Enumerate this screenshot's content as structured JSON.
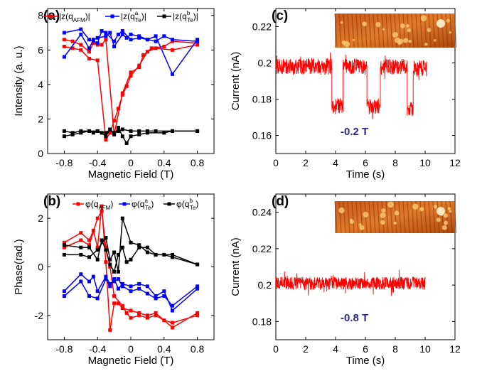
{
  "chart_data": [
    {
      "id": "a",
      "panel_label": "(a)",
      "type": "line",
      "xlabel": "Magnetic Field (T)",
      "ylabel": "Intensity (a. u.)",
      "xlim": [
        -1.0,
        1.0
      ],
      "ylim": [
        0,
        8.4
      ],
      "xticks": [
        -0.8,
        -0.4,
        0,
        0.4,
        0.8
      ],
      "xtick_labels": [
        "-0.8",
        "-0.4",
        "0",
        "0.4",
        "0.8"
      ],
      "yticks": [
        0,
        2,
        4,
        6,
        8
      ],
      "ytick_labels": [
        "0",
        "2",
        "4",
        "6",
        "8"
      ],
      "legend": {
        "placement": "top",
        "entries": [
          {
            "prefix": "|z(q",
            "sub": "AFM",
            "sup": "",
            "suffix": ")|",
            "color": "#ff0000"
          },
          {
            "prefix": "|z(q",
            "sub": "Te",
            "sup": "a",
            "suffix": ")|",
            "color": "#0000ff"
          },
          {
            "prefix": "|z(q",
            "sub": "Te",
            "sup": "b",
            "suffix": ")|",
            "color": "#000000"
          }
        ]
      },
      "series": [
        {
          "color": "#ff0000",
          "x": [
            -0.8,
            -0.7,
            -0.6,
            -0.5,
            -0.4,
            -0.3,
            -0.25,
            -0.2,
            -0.15,
            -0.1,
            -0.05,
            0,
            0.1,
            0.2,
            0.3,
            0.5,
            0.8
          ],
          "y": [
            6.2,
            6.1,
            6.0,
            5.5,
            5.4,
            0.8,
            1.2,
            1.9,
            2.6,
            3.4,
            3.9,
            4.5,
            5.1,
            5.9,
            6.1,
            6.0,
            6.3
          ]
        },
        {
          "color": "#ff0000",
          "x": [
            -0.8,
            -0.7,
            -0.6,
            -0.5,
            -0.45,
            -0.4,
            -0.35,
            -0.3,
            -0.2,
            -0.1,
            0,
            0.1,
            0.15,
            0.25,
            0.4,
            0.5,
            0.8
          ],
          "y": [
            6.6,
            6.5,
            6.3,
            5.9,
            6.4,
            6.3,
            6.3,
            6.6,
            1.1,
            3.5,
            4.7,
            5.0,
            5.7,
            6.1,
            6.2,
            6.5,
            6.4
          ]
        },
        {
          "color": "#0000ff",
          "x": [
            -0.8,
            -0.6,
            -0.5,
            -0.45,
            -0.4,
            -0.3,
            -0.25,
            -0.2,
            -0.1,
            -0.05,
            0,
            0.1,
            0.2,
            0.3,
            0.5,
            0.8
          ],
          "y": [
            5.6,
            6.9,
            6.1,
            6.6,
            6.7,
            6.8,
            7.0,
            6.2,
            6.9,
            6.7,
            6.9,
            6.8,
            6.6,
            6.8,
            4.6,
            6.6
          ]
        },
        {
          "color": "#0000ff",
          "x": [
            -0.8,
            -0.6,
            -0.5,
            -0.4,
            -0.35,
            -0.3,
            -0.2,
            -0.15,
            -0.1,
            0,
            0.1,
            0.2,
            0.3,
            0.4,
            0.5,
            0.8
          ],
          "y": [
            7.0,
            7.2,
            6.6,
            6.4,
            7.1,
            7.0,
            6.5,
            6.9,
            7.1,
            6.6,
            6.7,
            6.6,
            6.5,
            6.8,
            6.6,
            6.5
          ]
        },
        {
          "color": "#000000",
          "x": [
            -0.8,
            -0.7,
            -0.6,
            -0.5,
            -0.45,
            -0.4,
            -0.3,
            -0.25,
            -0.2,
            -0.15,
            -0.1,
            0,
            0.1,
            0.2,
            0.3,
            0.5,
            0.8
          ],
          "y": [
            1.3,
            1.2,
            1.3,
            1.3,
            1.2,
            1.3,
            1.2,
            1.4,
            1.2,
            1.3,
            1.4,
            1.3,
            1.3,
            1.3,
            1.3,
            1.3,
            1.3
          ]
        },
        {
          "color": "#000000",
          "x": [
            -0.8,
            -0.7,
            -0.6,
            -0.5,
            -0.4,
            -0.35,
            -0.3,
            -0.25,
            -0.2,
            -0.15,
            -0.1,
            -0.05,
            0,
            0.1,
            0.2,
            0.4,
            0.5,
            0.8
          ],
          "y": [
            1.0,
            1.1,
            1.2,
            1.3,
            1.3,
            1.2,
            1.0,
            1.4,
            1.1,
            1.5,
            1.0,
            0.6,
            1.0,
            1.1,
            1.2,
            1.2,
            1.3,
            1.3
          ]
        }
      ]
    },
    {
      "id": "b",
      "panel_label": "(b)",
      "type": "line",
      "xlabel": "Magnetic Field (T)",
      "ylabel": "Phase(rad.)",
      "xlim": [
        -1.0,
        1.0
      ],
      "ylim": [
        -3,
        3
      ],
      "xticks": [
        -0.8,
        -0.4,
        0,
        0.4,
        0.8
      ],
      "xtick_labels": [
        "-0.8",
        "-0.4",
        "0",
        "0.4",
        "0.8"
      ],
      "yticks": [
        -2,
        0,
        2
      ],
      "ytick_labels": [
        "-2",
        "0",
        "2"
      ],
      "legend": {
        "placement": "top",
        "entries": [
          {
            "prefix": "φ(q",
            "sub": "AFM",
            "sup": "",
            "suffix": ")",
            "color": "#ff0000"
          },
          {
            "prefix": "φ(q",
            "sub": "Te",
            "sup": "a",
            "suffix": ")",
            "color": "#0000ff"
          },
          {
            "prefix": "φ(q",
            "sub": "Te",
            "sup": "b",
            "suffix": ")",
            "color": "#000000"
          }
        ]
      },
      "series": [
        {
          "color": "#ff0000",
          "x": [
            -0.8,
            -0.6,
            -0.5,
            -0.45,
            -0.4,
            -0.35,
            -0.3,
            -0.25,
            -0.2,
            -0.15,
            -0.1,
            0,
            0.1,
            0.2,
            0.3,
            0.5,
            0.8
          ],
          "y": [
            1.0,
            1.4,
            1.1,
            1.5,
            0.8,
            2.5,
            0.2,
            -2.6,
            -1.5,
            -1.5,
            -1.7,
            -1.8,
            -1.9,
            -2.0,
            -1.9,
            -2.5,
            -1.9
          ]
        },
        {
          "color": "#ff0000",
          "x": [
            -0.8,
            -0.6,
            -0.5,
            -0.4,
            -0.35,
            -0.3,
            -0.25,
            -0.2,
            -0.1,
            -0.05,
            0,
            0.1,
            0.2,
            0.3,
            0.4,
            0.5,
            0.8
          ],
          "y": [
            0.8,
            1.1,
            0.9,
            2.0,
            2.3,
            0.8,
            0.0,
            -1.2,
            -1.6,
            -1.9,
            -2.1,
            -2.0,
            -2.1,
            -2.0,
            -2.2,
            -2.3,
            -2.0
          ]
        },
        {
          "color": "#0000ff",
          "x": [
            -0.8,
            -0.6,
            -0.5,
            -0.45,
            -0.4,
            -0.3,
            -0.25,
            -0.2,
            -0.15,
            -0.1,
            0,
            0.1,
            0.2,
            0.3,
            0.4,
            0.5,
            0.8
          ],
          "y": [
            -1.0,
            -0.3,
            -0.6,
            -0.4,
            -1.0,
            -0.4,
            -0.7,
            -0.6,
            -0.5,
            -0.8,
            -1.0,
            -0.9,
            -1.1,
            -1.3,
            -1.2,
            -1.6,
            -0.8
          ]
        },
        {
          "color": "#0000ff",
          "x": [
            -0.8,
            -0.6,
            -0.5,
            -0.4,
            -0.3,
            -0.25,
            -0.2,
            -0.15,
            -0.1,
            0,
            0.1,
            0.2,
            0.3,
            0.4,
            0.5,
            0.8
          ],
          "y": [
            -1.2,
            -0.6,
            -1.2,
            -1.3,
            -0.5,
            -0.8,
            -0.5,
            -0.9,
            -0.7,
            -0.8,
            -0.7,
            -0.8,
            -1.2,
            -1.0,
            -1.8,
            -0.9
          ]
        },
        {
          "color": "#000000",
          "x": [
            -0.8,
            -0.6,
            -0.5,
            -0.4,
            -0.35,
            -0.3,
            -0.25,
            -0.2,
            -0.15,
            -0.1,
            -0.05,
            0,
            0.1,
            0.2,
            0.3,
            0.5,
            0.8
          ],
          "y": [
            0.9,
            0.8,
            0.8,
            0.3,
            1.1,
            0.7,
            0.1,
            -0.2,
            0.5,
            0.8,
            0.2,
            0.3,
            0.8,
            0.8,
            0.5,
            0.5,
            0.1
          ]
        },
        {
          "color": "#000000",
          "x": [
            -0.8,
            -0.6,
            -0.5,
            -0.4,
            -0.3,
            -0.25,
            -0.2,
            -0.15,
            -0.1,
            0,
            0.1,
            0.2,
            0.3,
            0.4,
            0.5,
            0.8
          ],
          "y": [
            0.5,
            0.5,
            0.4,
            0.7,
            1.2,
            0.3,
            0.6,
            -0.2,
            2.0,
            1.0,
            0.9,
            0.6,
            0.5,
            0.5,
            0.4,
            0.1
          ]
        }
      ]
    },
    {
      "id": "c",
      "panel_label": "(c)",
      "type": "line",
      "xlabel": "Time (s)",
      "ylabel": "Current (nA)",
      "xlim": [
        0,
        12
      ],
      "ylim": [
        0.15,
        0.23
      ],
      "xticks": [
        0,
        2,
        4,
        6,
        8,
        10,
        12
      ],
      "xtick_labels": [
        "0",
        "2",
        "4",
        "6",
        "8",
        "10",
        "12"
      ],
      "yticks": [
        0.16,
        0.18,
        0.2,
        0.22
      ],
      "ytick_labels": [
        "0.16",
        "0.18",
        "0.2",
        "0.22"
      ],
      "annotation": "-0.2 T",
      "annotation_color": "#2a2a8c",
      "inset": "stm-topograph",
      "series": [
        {
          "color": "#ff0000",
          "noise": 0.0045,
          "segments": [
            {
              "x": [
                0,
                3.75
              ],
              "y": 0.198
            },
            {
              "x": [
                3.75,
                4.5
              ],
              "y": 0.176
            },
            {
              "x": [
                4.5,
                6.1
              ],
              "y": 0.198
            },
            {
              "x": [
                6.1,
                7.0
              ],
              "y": 0.176
            },
            {
              "x": [
                7.0,
                8.8
              ],
              "y": 0.198
            },
            {
              "x": [
                8.8,
                9.2
              ],
              "y": 0.174
            },
            {
              "x": [
                9.2,
                10.1
              ],
              "y": 0.197
            }
          ]
        }
      ]
    },
    {
      "id": "d",
      "panel_label": "(d)",
      "type": "line",
      "xlabel": "Time (s)",
      "ylabel": "Current (nA)",
      "xlim": [
        0,
        12
      ],
      "ylim": [
        0.17,
        0.25
      ],
      "xticks": [
        0,
        2,
        4,
        6,
        8,
        10,
        12
      ],
      "xtick_labels": [
        "0",
        "2",
        "4",
        "6",
        "8",
        "10",
        "12"
      ],
      "yticks": [
        0.18,
        0.2,
        0.22,
        0.24
      ],
      "ytick_labels": [
        "0.18",
        "0.2",
        "0.22",
        "0.24"
      ],
      "annotation": "-0.8 T",
      "annotation_color": "#2a2a8c",
      "inset": "stm-topograph",
      "series": [
        {
          "color": "#ff0000",
          "noise": 0.0035,
          "segments": [
            {
              "x": [
                0,
                10.0
              ],
              "y": 0.201
            }
          ]
        }
      ]
    }
  ]
}
